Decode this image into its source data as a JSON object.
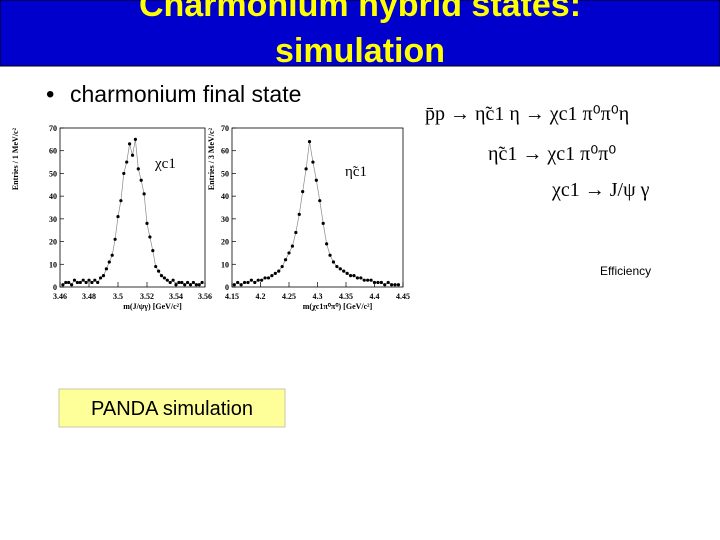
{
  "title": [
    "Charmonium hybrid states:",
    "simulation"
  ],
  "bullet": "charmonium final state",
  "formulas": [
    "p̄p → η̃c1 η → χc1 π⁰π⁰η",
    "η̃c1 → χc1 π⁰π⁰",
    "χc1 → J/ψ γ"
  ],
  "efficiency": "Efficiency",
  "panda": "PANDA simulation",
  "chart_data": [
    {
      "type": "scatter",
      "annotation": "χc1",
      "xlabel": "m(J/ψγ) [GeV/c²]",
      "ylabel": "Entries / 1 MeV/c²",
      "xlim": [
        3.46,
        3.56
      ],
      "xticks": [
        3.46,
        3.48,
        3.5,
        3.52,
        3.54,
        3.56
      ],
      "ylim": [
        0,
        70
      ],
      "yticks": [
        0,
        10,
        20,
        30,
        40,
        50,
        60,
        70
      ],
      "color": "#000000",
      "x": [
        3.462,
        3.464,
        3.466,
        3.468,
        3.47,
        3.472,
        3.474,
        3.476,
        3.478,
        3.48,
        3.482,
        3.484,
        3.486,
        3.488,
        3.49,
        3.492,
        3.494,
        3.496,
        3.498,
        3.5,
        3.502,
        3.504,
        3.506,
        3.508,
        3.51,
        3.512,
        3.514,
        3.516,
        3.518,
        3.52,
        3.522,
        3.524,
        3.526,
        3.528,
        3.53,
        3.532,
        3.534,
        3.536,
        3.538,
        3.54,
        3.542,
        3.544,
        3.546,
        3.548,
        3.55,
        3.552,
        3.554,
        3.556,
        3.558
      ],
      "values": [
        1,
        2,
        2,
        1,
        3,
        2,
        2,
        3,
        2,
        3,
        2,
        3,
        2,
        4,
        5,
        8,
        11,
        14,
        21,
        31,
        38,
        50,
        55,
        63,
        58,
        65,
        52,
        47,
        41,
        28,
        22,
        16,
        9,
        7,
        5,
        4,
        3,
        2,
        3,
        1,
        2,
        2,
        1,
        2,
        1,
        2,
        1,
        1,
        2
      ]
    },
    {
      "type": "scatter",
      "annotation": "η̃c1",
      "xlabel": "m(χc1π⁰π⁰) [GeV/c²]",
      "ylabel": "Entries / 3 MeV/c²",
      "xlim": [
        4.15,
        4.45
      ],
      "xticks": [
        4.15,
        4.2,
        4.25,
        4.3,
        4.35,
        4.4,
        4.45
      ],
      "ylim": [
        0,
        70
      ],
      "yticks": [
        0,
        10,
        20,
        30,
        40,
        50,
        60,
        70
      ],
      "color": "#000000",
      "x": [
        4.154,
        4.16,
        4.166,
        4.172,
        4.178,
        4.184,
        4.19,
        4.196,
        4.202,
        4.208,
        4.214,
        4.22,
        4.226,
        4.232,
        4.238,
        4.244,
        4.25,
        4.256,
        4.262,
        4.268,
        4.274,
        4.28,
        4.286,
        4.292,
        4.298,
        4.304,
        4.31,
        4.316,
        4.322,
        4.328,
        4.334,
        4.34,
        4.346,
        4.352,
        4.358,
        4.364,
        4.37,
        4.376,
        4.382,
        4.388,
        4.394,
        4.4,
        4.406,
        4.412,
        4.418,
        4.424,
        4.43,
        4.436,
        4.442
      ],
      "values": [
        1,
        2,
        1,
        2,
        2,
        3,
        2,
        3,
        3,
        4,
        4,
        5,
        6,
        7,
        9,
        12,
        15,
        18,
        24,
        32,
        42,
        52,
        64,
        55,
        47,
        38,
        28,
        19,
        14,
        11,
        9,
        8,
        7,
        6,
        5,
        5,
        4,
        4,
        3,
        3,
        3,
        2,
        2,
        2,
        1,
        2,
        1,
        1,
        1
      ]
    }
  ]
}
